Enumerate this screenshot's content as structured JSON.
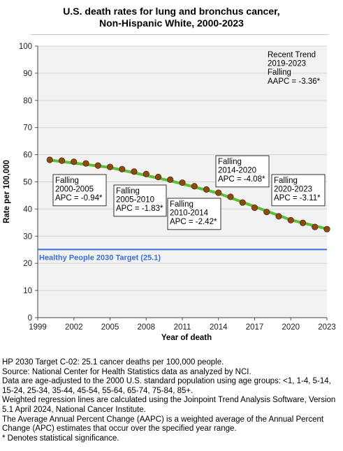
{
  "chart_data": {
    "type": "scatter",
    "title": "U.S. death rates for lung and bronchus cancer,",
    "subtitle": "Non-Hispanic White,  2000-2023",
    "xlabel": "Year of death",
    "ylabel": "Rate per 100,000",
    "xlim": [
      1999,
      2023
    ],
    "ylim": [
      0,
      100
    ],
    "x_ticks": [
      "1999",
      "2002",
      "2005",
      "2008",
      "2011",
      "2014",
      "2017",
      "2020",
      "2023"
    ],
    "y_ticks": [
      "0",
      "10",
      "20",
      "30",
      "40",
      "50",
      "60",
      "70",
      "80",
      "90",
      "100"
    ],
    "grid": true,
    "colors": {
      "point": "#8b4a14",
      "point_stroke": "#5a2e08",
      "trend": "#5cbf3a",
      "target": "#3b6fd4",
      "plot_bg": "#f2f2f2",
      "grid": "#d4d4d4"
    },
    "series": [
      {
        "x": [
          2000,
          2001,
          2002,
          2003,
          2004,
          2005,
          2006,
          2007,
          2008,
          2009,
          2010,
          2011,
          2012,
          2013,
          2014,
          2015,
          2016,
          2017,
          2018,
          2019,
          2020,
          2021,
          2022,
          2023
        ],
        "values": [
          58.1,
          57.8,
          57.4,
          56.8,
          56.0,
          55.5,
          54.7,
          53.8,
          52.9,
          51.8,
          50.8,
          49.7,
          48.4,
          47.2,
          46.0,
          44.5,
          42.4,
          40.5,
          38.9,
          37.3,
          35.9,
          34.9,
          33.4,
          32.6
        ]
      }
    ],
    "trend_segments": [
      {
        "x": [
          2000,
          2005
        ],
        "y": [
          58.0,
          55.3
        ]
      },
      {
        "x": [
          2005,
          2010
        ],
        "y": [
          55.3,
          50.4
        ]
      },
      {
        "x": [
          2010,
          2014
        ],
        "y": [
          50.4,
          45.8
        ]
      },
      {
        "x": [
          2014,
          2020
        ],
        "y": [
          45.8,
          36.0
        ]
      },
      {
        "x": [
          2020,
          2023
        ],
        "y": [
          36.0,
          32.7
        ]
      }
    ],
    "reference_line": {
      "value": 25.1,
      "label": "Healthy People 2030 Target (25.1)"
    },
    "annotations": [
      {
        "lines": [
          "Falling",
          "2000-2005",
          "APC = -0.94*"
        ],
        "bordered": true
      },
      {
        "lines": [
          "Falling",
          "2005-2010",
          "APC = -1.83*"
        ],
        "bordered": true
      },
      {
        "lines": [
          "Falling",
          "2010-2014",
          "APC = -2.42*"
        ],
        "bordered": true
      },
      {
        "lines": [
          "Falling",
          "2014-2020",
          "APC = -4.08*"
        ],
        "bordered": true
      },
      {
        "lines": [
          "Falling",
          "2020-2023",
          "APC = -3.11*"
        ],
        "bordered": true
      },
      {
        "lines": [
          "Recent Trend",
          "2019-2023",
          "Falling",
          "AAPC = -3.36*"
        ],
        "bordered": false
      }
    ]
  },
  "footnotes": [
    "HP 2030 Target C-02: 25.1 cancer deaths per 100,000 people.",
    "Source: National Center for Health Statistics data as analyzed by NCI.",
    "Data are age-adjusted to the 2000 U.S. standard population using age groups: <1, 1-4, 5-14, 15-24, 25-34, 35-44, 45-54, 55-64, 65-74, 75-84, 85+.",
    "Weighted regression lines are calculated using the Joinpoint Trend Analysis Software, Version 5.1 April 2024, National Cancer Institute.",
    "The Average Annual Percent Change (AAPC) is a weighted average of the Annual Percent Change (APC) estimates that occur over the specified year range.",
    "* Denotes statistical significance."
  ]
}
